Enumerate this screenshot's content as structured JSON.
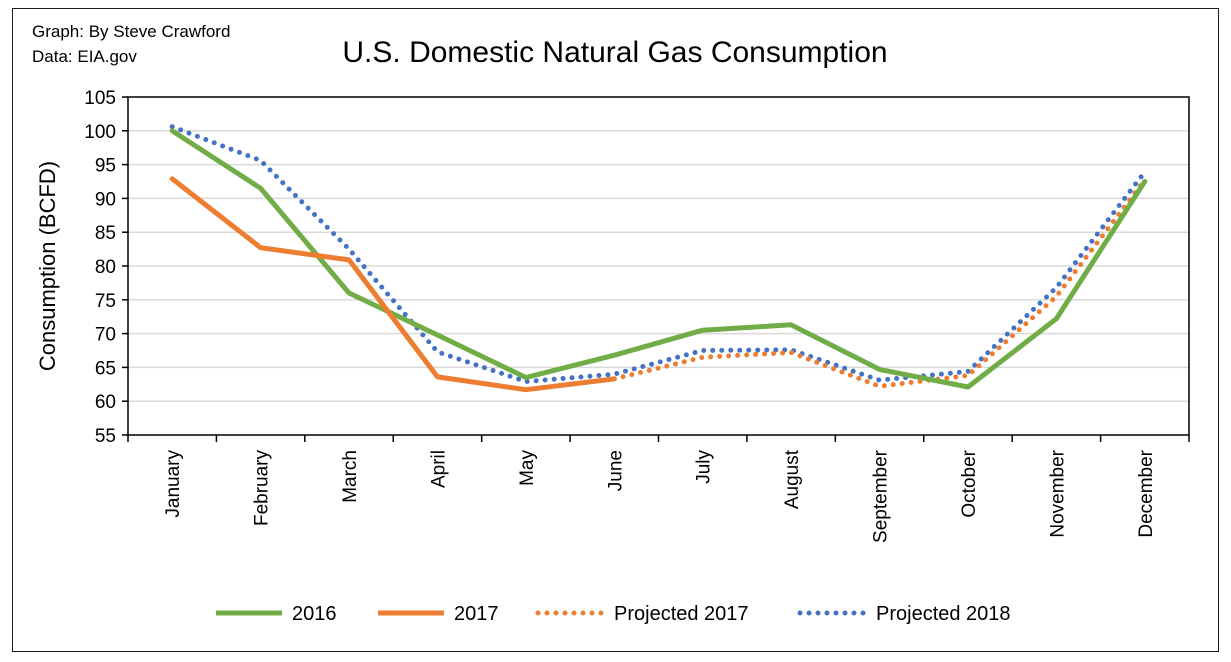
{
  "credit": {
    "graph": "Graph: By Steve Crawford",
    "data": "Data: EIA.gov"
  },
  "chart_data": {
    "type": "line",
    "title": "U.S. Domestic Natural Gas Consumption",
    "xlabel": "",
    "ylabel": "Consumption (BCFD)",
    "ylim": [
      55,
      105
    ],
    "yticks": [
      55,
      60,
      65,
      70,
      75,
      80,
      85,
      90,
      95,
      100,
      105
    ],
    "grid": true,
    "legend_position": "bottom",
    "categories": [
      "January",
      "February",
      "March",
      "April",
      "May",
      "June",
      "July",
      "August",
      "September",
      "October",
      "November",
      "December"
    ],
    "series": [
      {
        "name": "2016",
        "style": "solid",
        "color": "#70ad47",
        "values": [
          100.0,
          91.5,
          76.0,
          69.8,
          63.5,
          66.8,
          70.5,
          71.3,
          64.7,
          62.1,
          72.2,
          92.5
        ]
      },
      {
        "name": "2017",
        "style": "solid",
        "color": "#ed7d31",
        "values": [
          92.9,
          82.7,
          80.9,
          63.6,
          61.7,
          63.3,
          null,
          null,
          null,
          null,
          null,
          null
        ]
      },
      {
        "name": "Projected 2017",
        "style": "dotted",
        "color": "#ed7d31",
        "values": [
          null,
          null,
          null,
          null,
          null,
          63.3,
          66.5,
          67.2,
          62.2,
          63.8,
          75.5,
          92.7
        ]
      },
      {
        "name": "Projected 2018",
        "style": "dotted",
        "color": "#4472c4",
        "values": [
          100.6,
          95.6,
          82.5,
          67.3,
          62.9,
          64.0,
          67.5,
          67.6,
          63.1,
          64.4,
          76.8,
          93.9
        ]
      }
    ]
  }
}
